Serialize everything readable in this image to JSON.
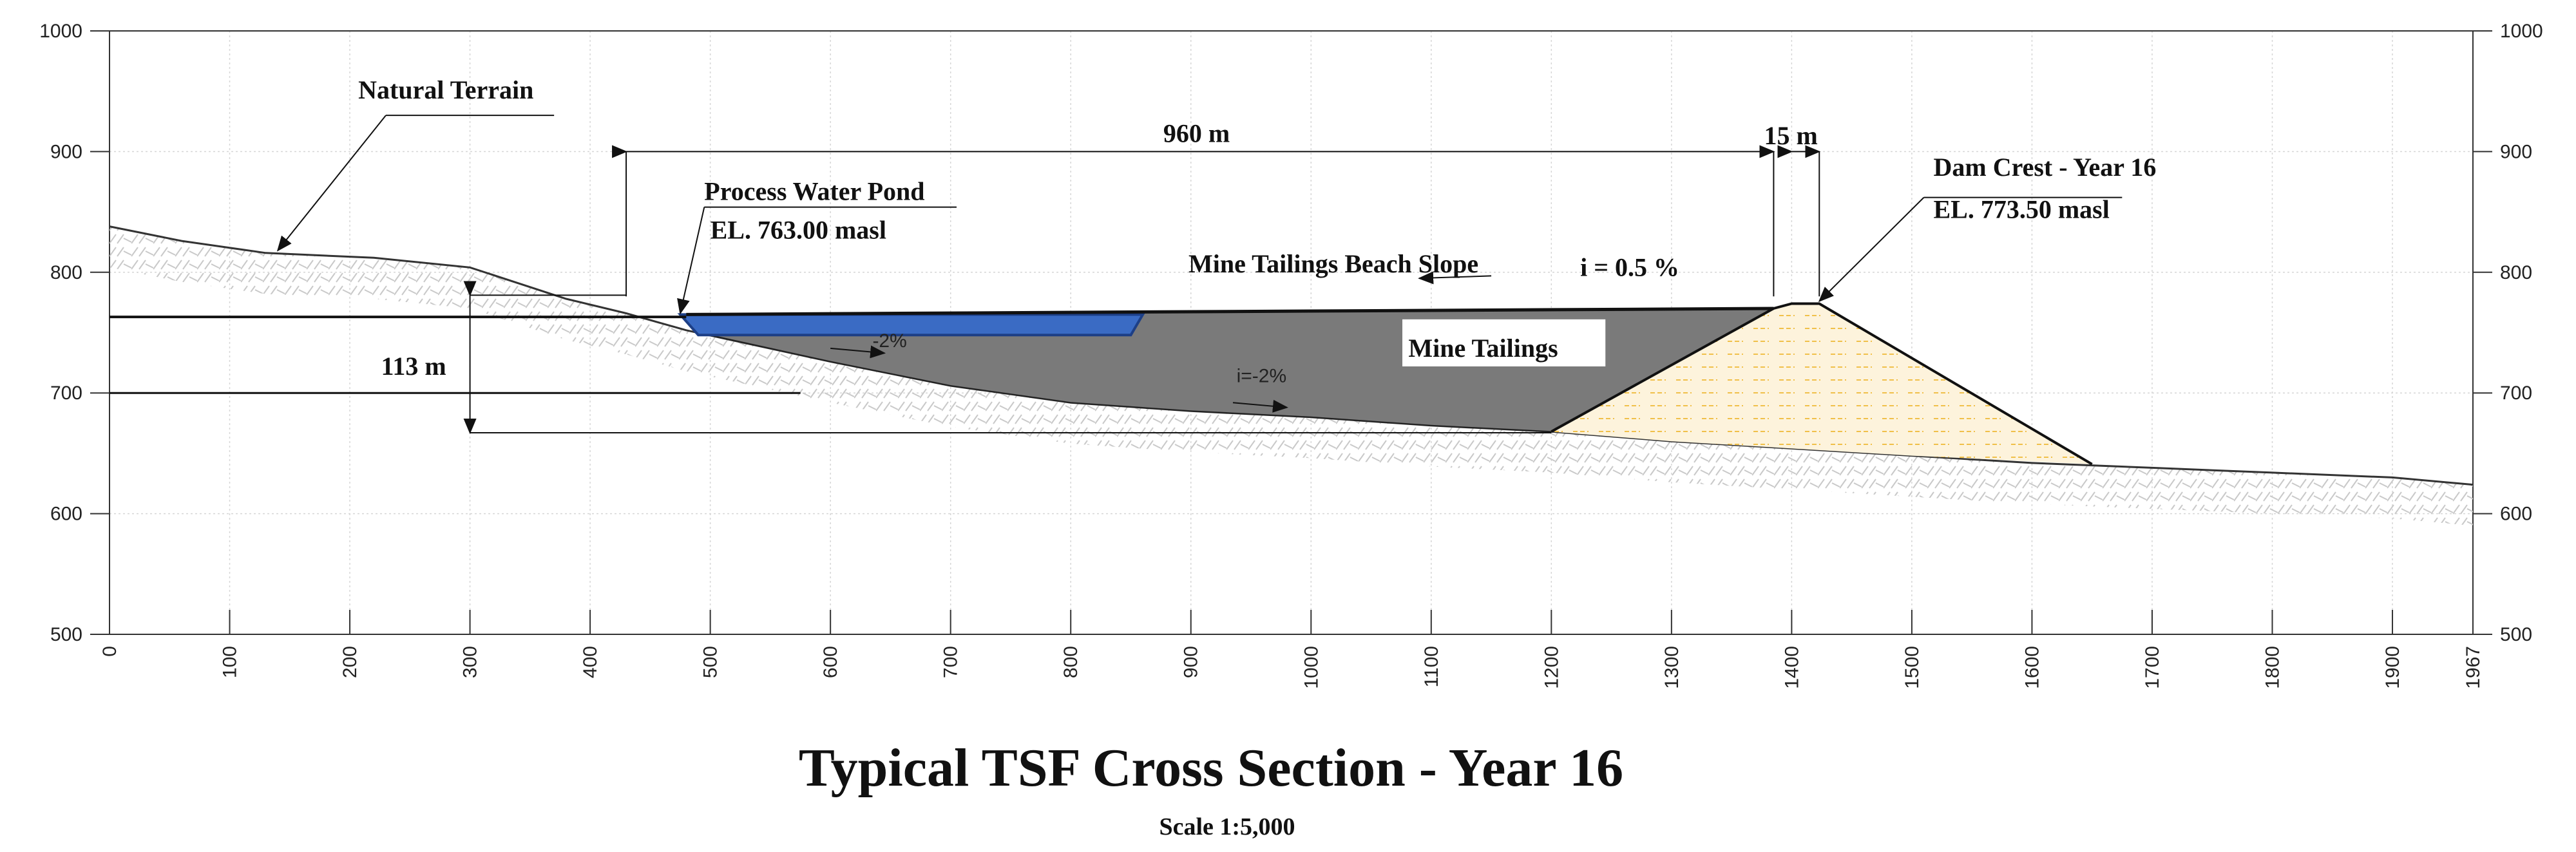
{
  "chart_data": {
    "type": "cross-section",
    "title": "Typical TSF Cross Section  - Year 16",
    "subtitle": "Scale 1:5,000",
    "x_ticks": [
      "0",
      "100",
      "200",
      "300",
      "400",
      "500",
      "600",
      "700",
      "800",
      "900",
      "1000",
      "1100",
      "1200",
      "1300",
      "1400",
      "1500",
      "1600",
      "1700",
      "1800",
      "1900",
      "1967"
    ],
    "y_ticks": [
      "500",
      "600",
      "700",
      "800",
      "900",
      "1000"
    ],
    "xlim": [
      0,
      1967
    ],
    "ylim": [
      500,
      1000
    ],
    "terrain": [
      [
        0,
        838
      ],
      [
        60,
        826
      ],
      [
        130,
        816
      ],
      [
        220,
        812
      ],
      [
        300,
        804
      ],
      [
        380,
        778
      ],
      [
        430,
        766
      ],
      [
        480,
        752
      ],
      [
        600,
        726
      ],
      [
        700,
        706
      ],
      [
        800,
        692
      ],
      [
        900,
        685
      ],
      [
        1000,
        680
      ],
      [
        1100,
        673
      ],
      [
        1200,
        668
      ],
      [
        1300,
        660
      ],
      [
        1400,
        654
      ],
      [
        1500,
        648
      ],
      [
        1600,
        642
      ],
      [
        1700,
        638
      ],
      [
        1800,
        634
      ],
      [
        1900,
        630
      ],
      [
        1967,
        624
      ]
    ],
    "tailings": [
      [
        480,
        765
      ],
      [
        1385,
        770
      ],
      [
        1200,
        668
      ],
      [
        1100,
        673
      ],
      [
        1000,
        680
      ],
      [
        900,
        685
      ],
      [
        800,
        692
      ],
      [
        700,
        706
      ],
      [
        600,
        726
      ],
      [
        490,
        750
      ]
    ],
    "pond": [
      [
        475,
        765
      ],
      [
        860,
        765
      ],
      [
        850,
        748
      ],
      [
        490,
        748
      ]
    ],
    "dam": [
      [
        1385,
        770
      ],
      [
        1400,
        774
      ],
      [
        1423,
        774
      ],
      [
        1650,
        641
      ],
      [
        1500,
        648
      ],
      [
        1400,
        654
      ],
      [
        1300,
        660
      ],
      [
        1200,
        668
      ]
    ],
    "annotations": {
      "natural_terrain": "Natural Terrain",
      "process_water_pond": "Process Water Pond",
      "pond_elevation": "EL. 763.00 masl",
      "beach_slope": "Mine Tailings Beach Slope",
      "beach_slope_value": "i = 0.5 %",
      "mine_tailings": "Mine Tailings",
      "slope_bottom": "i=-2%",
      "slope_pond": "-2%",
      "dam_crest": "Dam Crest - Year 16",
      "dam_elevation": "EL. 773.50 masl",
      "dim_960": "960 m",
      "dim_15": "15 m",
      "dim_113": "113 m"
    }
  },
  "colors": {
    "tailings": "#7a7a7a",
    "pond": "#3a6bc4",
    "dam_fill": "#fdf3dc",
    "dam_hatch": "#f0c04a",
    "terrain_hatch": "#c8c8c8"
  }
}
